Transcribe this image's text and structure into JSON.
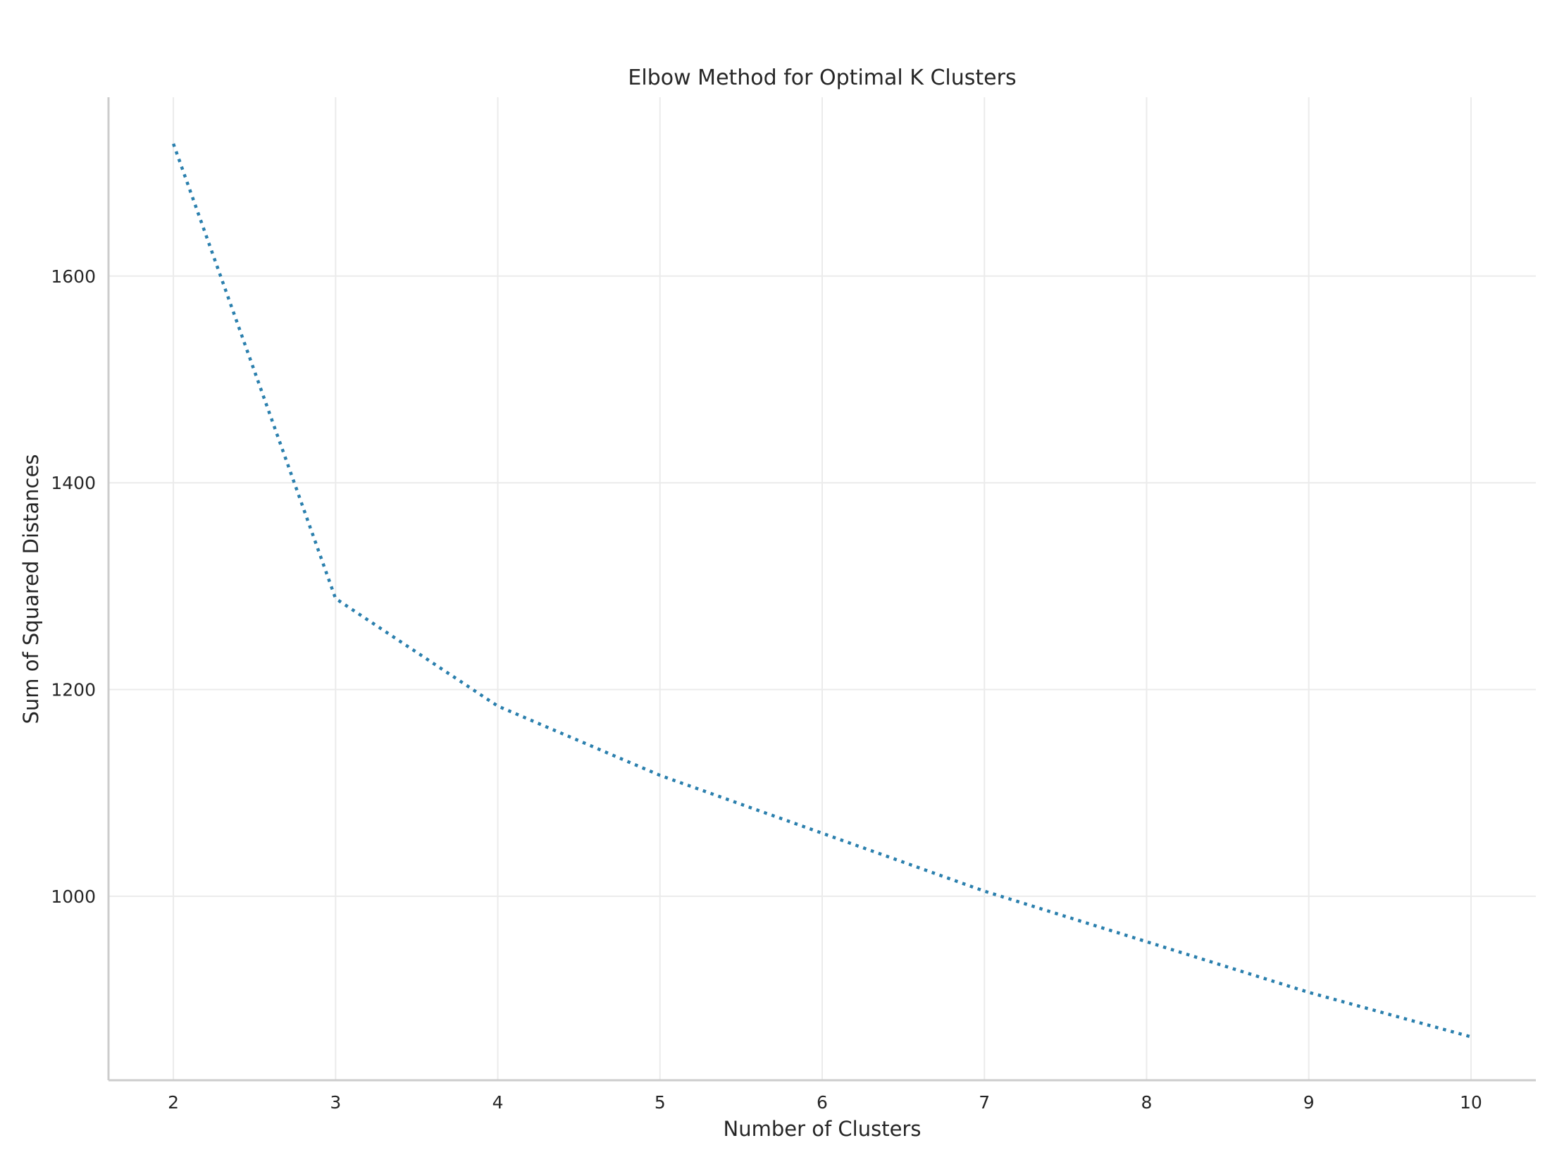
{
  "chart_data": {
    "type": "line",
    "title": "Elbow Method for Optimal K Clusters",
    "xlabel": "Number of Clusters",
    "ylabel": "Sum of Squared Distances",
    "x": [
      2,
      3,
      4,
      5,
      6,
      7,
      8,
      9,
      10
    ],
    "series": [
      {
        "values": [
          1728,
          1288,
          1184,
          1117,
          1061,
          1005,
          956,
          907,
          864
        ],
        "color": "#2a7fad",
        "line_style": "dotted"
      }
    ],
    "xticks": [
      "2",
      "3",
      "4",
      "5",
      "6",
      "7",
      "8",
      "9",
      "10"
    ],
    "yticks": [
      "1000",
      "1200",
      "1400",
      "1600"
    ],
    "xlim": [
      1.6,
      10.4
    ],
    "ylim": [
      822,
      1773
    ],
    "grid": true,
    "spines": "left-bottom"
  }
}
